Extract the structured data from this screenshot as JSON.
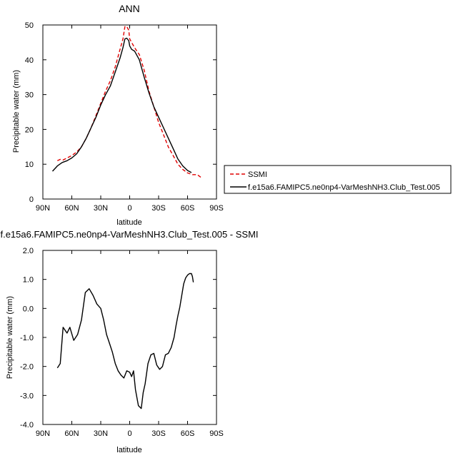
{
  "chart_data": [
    {
      "type": "line",
      "title": "ANN",
      "xlabel": "latitude",
      "ylabel": "Precipitable water (mm)",
      "x_ticks": [
        "90N",
        "60N",
        "30N",
        "0",
        "30S",
        "60S",
        "90S"
      ],
      "x_tick_values": [
        90,
        60,
        30,
        0,
        -30,
        -60,
        -90
      ],
      "y_ticks": [
        "0",
        "10",
        "20",
        "30",
        "40",
        "50"
      ],
      "y_tick_values": [
        0,
        10,
        20,
        30,
        40,
        50
      ],
      "xlim": [
        90,
        -90
      ],
      "ylim": [
        0,
        50
      ],
      "legend_position": "right",
      "series": [
        {
          "name": "SSMI",
          "color": "#e00000",
          "dash": "dashed",
          "x": [
            75,
            72,
            69,
            65,
            60,
            55,
            50,
            45,
            40,
            35,
            30,
            25,
            20,
            15,
            10,
            7,
            5,
            3,
            1,
            0,
            -2,
            -5,
            -10,
            -15,
            -20,
            -25,
            -30,
            -35,
            -40,
            -45,
            -50,
            -55,
            -60,
            -65,
            -70,
            -75
          ],
          "y": [
            11,
            11.4,
            11.2,
            11.8,
            12.5,
            13.5,
            15,
            17.5,
            20.5,
            24,
            27.5,
            31,
            34,
            38,
            43,
            46,
            49.5,
            49.6,
            48.5,
            46,
            45,
            43.5,
            41.5,
            37,
            31,
            26.5,
            22,
            18.5,
            15,
            12.5,
            10,
            8.5,
            7.5,
            7,
            7,
            6
          ]
        },
        {
          "name": "f.e15a6.FAMIPC5.ne0np4-VarMeshNH3.Club_Test.005",
          "color": "#000000",
          "dash": "solid",
          "x": [
            80,
            75,
            70,
            65,
            60,
            55,
            50,
            45,
            40,
            35,
            30,
            25,
            20,
            15,
            10,
            7,
            5,
            3,
            1,
            0,
            -2,
            -5,
            -10,
            -15,
            -20,
            -25,
            -30,
            -35,
            -40,
            -45,
            -50,
            -55,
            -60,
            -64
          ],
          "y": [
            8,
            9.5,
            10.5,
            11,
            11.8,
            13,
            15,
            17.5,
            20.5,
            23.5,
            27,
            30,
            32.5,
            36.5,
            40.5,
            43.5,
            46,
            46.2,
            45.5,
            44,
            43,
            42.5,
            40,
            35,
            30.5,
            26.5,
            23.5,
            20.5,
            17.5,
            14.5,
            11.5,
            9.5,
            8.2,
            7.6
          ]
        }
      ]
    },
    {
      "type": "line",
      "title": "f.e15a6.FAMIPC5.ne0np4-VarMeshNH3.Club_Test.005 - SSMI",
      "xlabel": "latitude",
      "ylabel": "Precipitable water (mm)",
      "x_ticks": [
        "90N",
        "60N",
        "30N",
        "0",
        "30S",
        "60S",
        "90S"
      ],
      "x_tick_values": [
        90,
        60,
        30,
        0,
        -30,
        -60,
        -90
      ],
      "y_ticks": [
        "-4.0",
        "-3.0",
        "-2.0",
        "-1.0",
        "0.0",
        "1.0",
        "2.0"
      ],
      "y_tick_values": [
        -4,
        -3,
        -2,
        -1,
        0,
        1,
        2
      ],
      "xlim": [
        90,
        -90
      ],
      "ylim": [
        -4,
        2
      ],
      "series": [
        {
          "name": "",
          "color": "#000000",
          "dash": "solid",
          "x": [
            75,
            72,
            69,
            65,
            62,
            58,
            54,
            50,
            46,
            42,
            38,
            34,
            30,
            27,
            24,
            21,
            18,
            15,
            12,
            9,
            6,
            3,
            0,
            -2,
            -4,
            -6,
            -9,
            -12,
            -14,
            -16,
            -19,
            -22,
            -25,
            -28,
            -31,
            -34,
            -37,
            -40,
            -43,
            -46,
            -48,
            -50,
            -52,
            -54,
            -56,
            -58,
            -60,
            -62,
            -64,
            -65,
            -66
          ],
          "y": [
            -2.05,
            -1.9,
            -0.65,
            -0.85,
            -0.65,
            -1.1,
            -0.9,
            -0.4,
            0.55,
            0.68,
            0.45,
            0.15,
            0.0,
            -0.4,
            -0.9,
            -1.2,
            -1.5,
            -1.9,
            -2.15,
            -2.3,
            -2.4,
            -2.15,
            -2.2,
            -2.35,
            -2.15,
            -2.8,
            -3.35,
            -3.45,
            -2.9,
            -2.6,
            -1.9,
            -1.6,
            -1.55,
            -1.95,
            -2.1,
            -2.0,
            -1.6,
            -1.55,
            -1.35,
            -1.0,
            -0.6,
            -0.25,
            0.05,
            0.45,
            0.85,
            1.05,
            1.15,
            1.2,
            1.2,
            1.1,
            0.9
          ]
        }
      ]
    }
  ]
}
